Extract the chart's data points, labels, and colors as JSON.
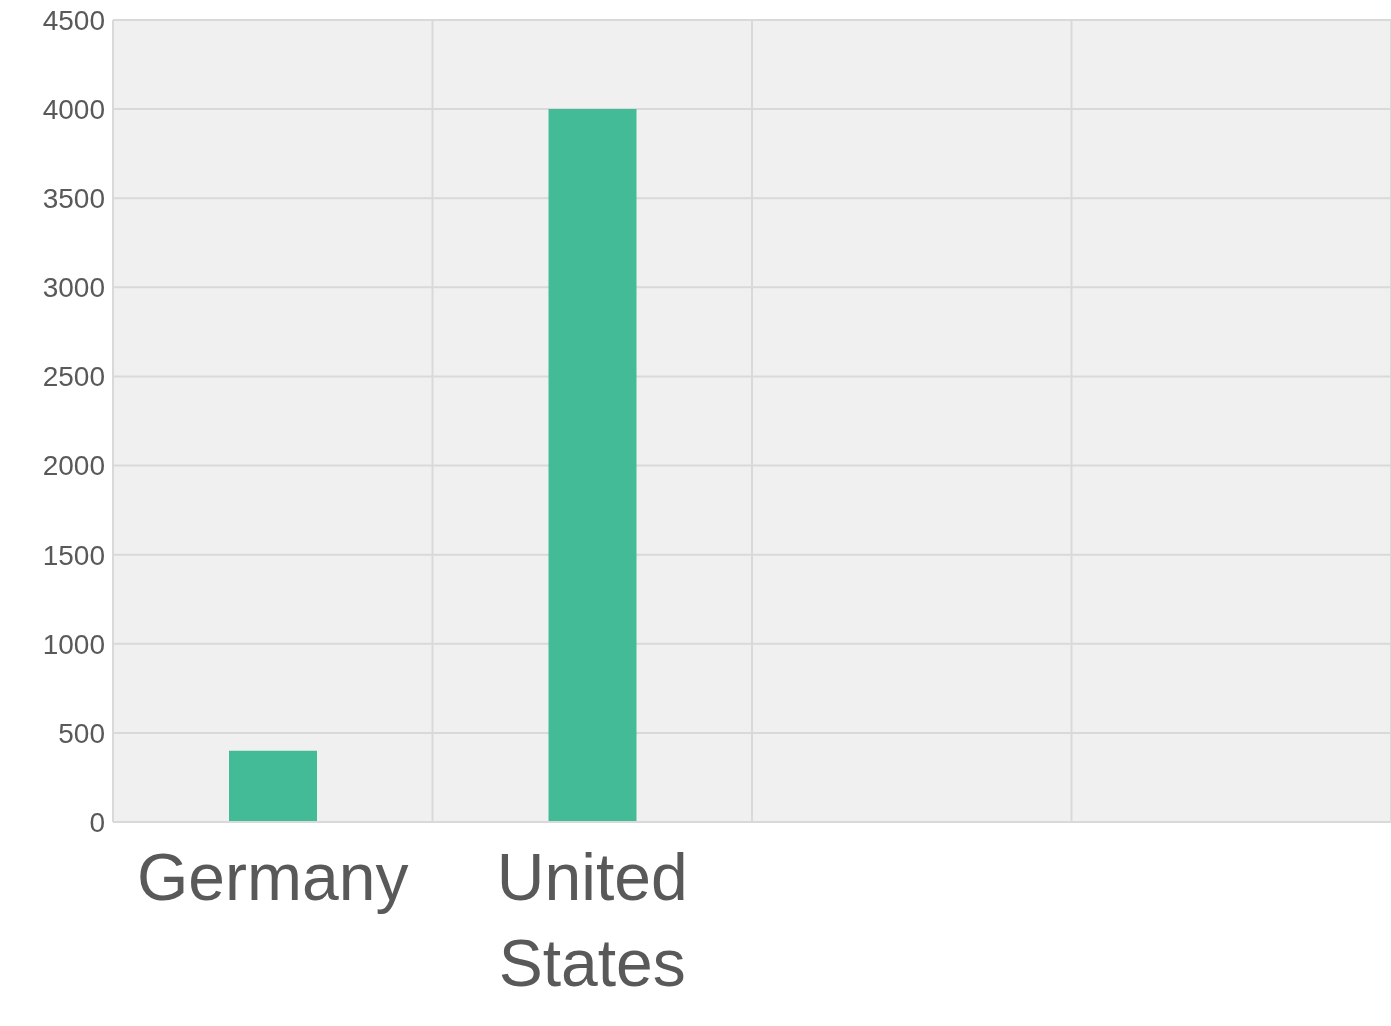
{
  "chart_data": {
    "type": "bar",
    "categories": [
      "Germany",
      "United States",
      null,
      null
    ],
    "values": [
      400,
      4000,
      null,
      null
    ],
    "color": "#43bb96",
    "ylim": [
      0,
      4500
    ],
    "yticks": [
      0,
      500,
      1000,
      1500,
      2000,
      2500,
      3000,
      3500,
      4000,
      4500
    ],
    "grid": true
  }
}
